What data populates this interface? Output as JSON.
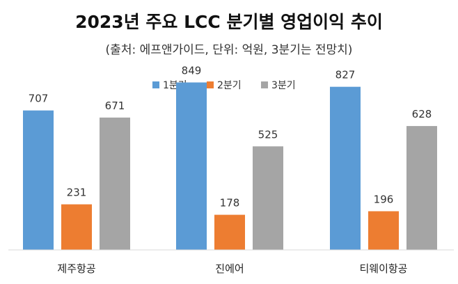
{
  "chart_data": {
    "type": "bar",
    "title": "2023년 주요 LCC 분기별 영업이익 추이",
    "subtitle": "(출처: 에프앤가이드, 단위: 억원, 3분기는 전망치)",
    "xlabel": "",
    "ylabel": "",
    "categories": [
      "제주항공",
      "진에어",
      "티웨이항공"
    ],
    "series": [
      {
        "name": "1분기",
        "values": [
          707,
          849,
          827
        ],
        "color": "#5B9BD5"
      },
      {
        "name": "2분기",
        "values": [
          231,
          178,
          196
        ],
        "color": "#ED7D31"
      },
      {
        "name": "3분기",
        "values": [
          671,
          525,
          628
        ],
        "color": "#A5A5A5"
      }
    ],
    "ylim": [
      0,
      900
    ],
    "grid": false,
    "legend": "top-center"
  }
}
